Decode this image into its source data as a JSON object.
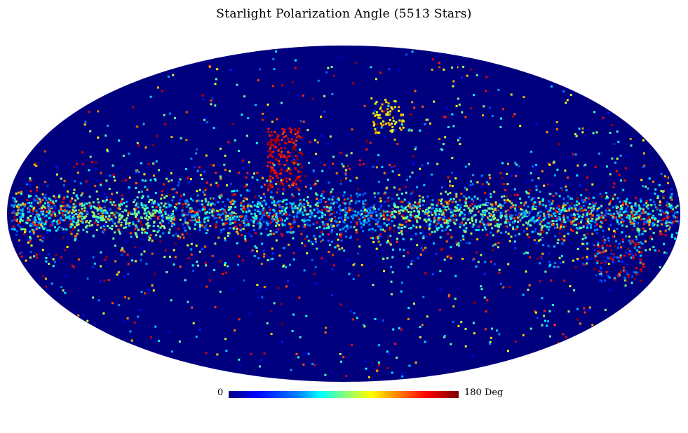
{
  "title": "Starlight Polarization Angle (5513 Stars)",
  "colorbar": {
    "min_label": "0",
    "max_label": "180 Deg",
    "colormap": "jet"
  },
  "colors": {
    "background": "#ffffff",
    "map_fill": "#00007f"
  }
}
